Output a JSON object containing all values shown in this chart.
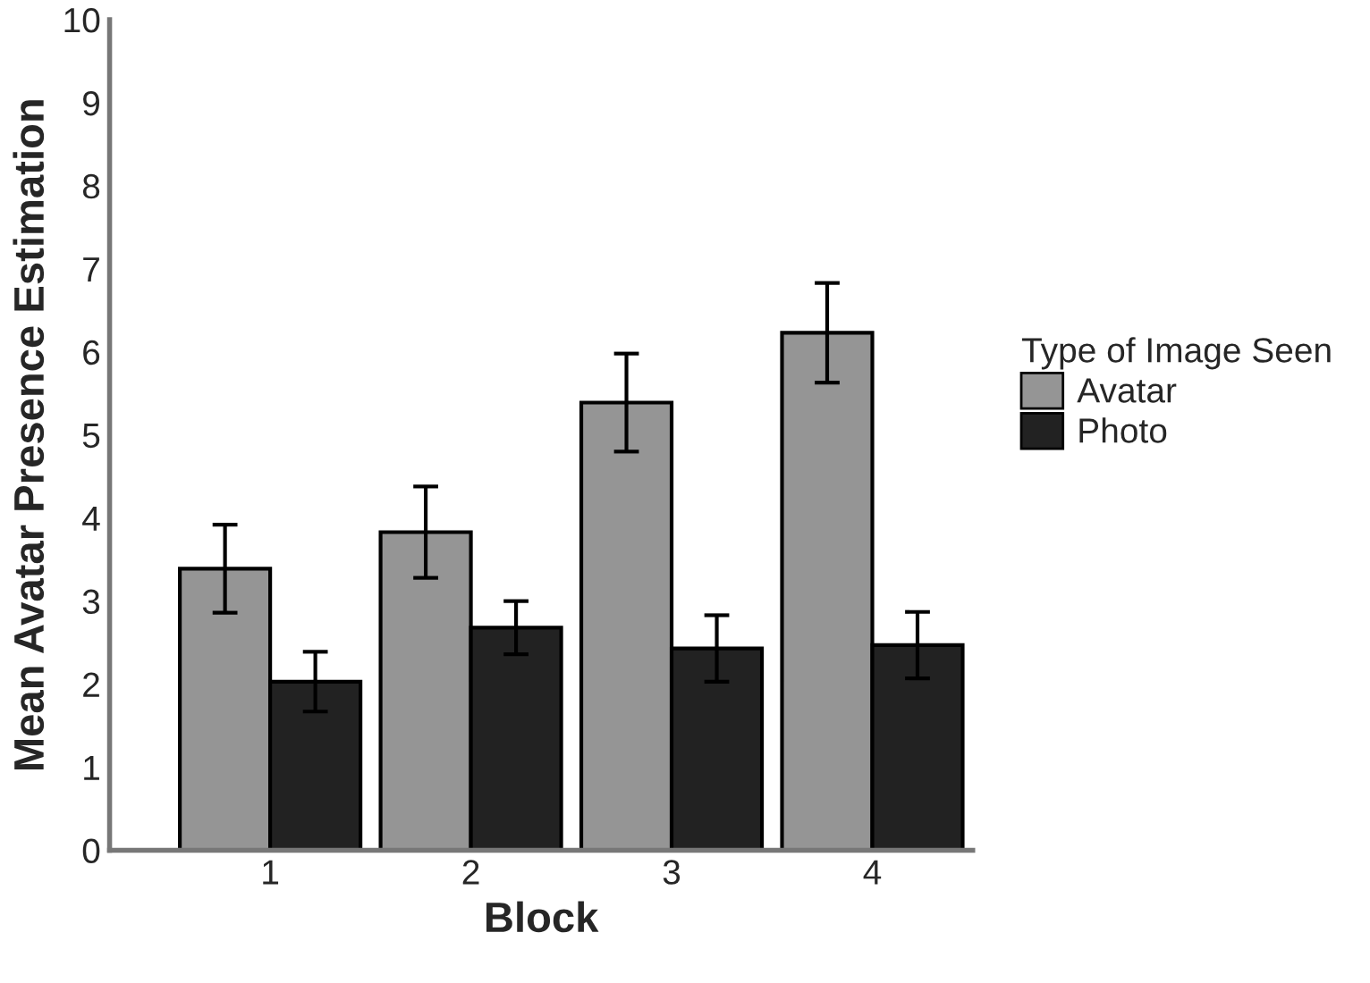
{
  "chart_data": {
    "type": "bar",
    "xlabel": "Block",
    "ylabel": "Mean Avatar Presence Estimation",
    "legend_title": "Type of Image Seen",
    "categories": [
      "1",
      "2",
      "3",
      "4"
    ],
    "series": [
      {
        "name": "Avatar",
        "color": "#959595",
        "values": [
          3.39,
          3.83,
          5.39,
          6.23
        ],
        "errors": [
          0.53,
          0.55,
          0.59,
          0.6
        ]
      },
      {
        "name": "Photo",
        "color": "#222222",
        "values": [
          2.03,
          2.68,
          2.43,
          2.47
        ],
        "errors": [
          0.36,
          0.32,
          0.4,
          0.4
        ]
      }
    ],
    "ylim": [
      0,
      10
    ],
    "yticks": [
      0,
      1,
      2,
      3,
      4,
      5,
      6,
      7,
      8,
      9,
      10
    ],
    "grid": false,
    "legend": "right"
  }
}
